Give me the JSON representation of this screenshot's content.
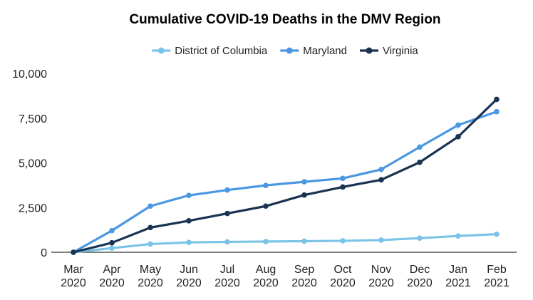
{
  "chart_data": {
    "type": "line",
    "title": "Cumulative COVID-19 Deaths in the DMV Region",
    "xlabel": "",
    "ylabel": "",
    "categories": [
      [
        "Mar",
        "2020"
      ],
      [
        "Apr",
        "2020"
      ],
      [
        "May",
        "2020"
      ],
      [
        "Jun",
        "2020"
      ],
      [
        "Jul",
        "2020"
      ],
      [
        "Aug",
        "2020"
      ],
      [
        "Sep",
        "2020"
      ],
      [
        "Oct",
        "2020"
      ],
      [
        "Nov",
        "2020"
      ],
      [
        "Dec",
        "2020"
      ],
      [
        "Jan",
        "2021"
      ],
      [
        "Feb",
        "2021"
      ]
    ],
    "ylim": [
      0,
      10000
    ],
    "yticks": [
      0,
      2500,
      5000,
      7500,
      10000
    ],
    "ytick_labels": [
      "0",
      "2,500",
      "5,000",
      "7,500",
      "10,000"
    ],
    "grid": false,
    "legend_position": "top",
    "series": [
      {
        "name": "District of Columbia",
        "color": "#7bc4e8",
        "values": [
          0,
          230,
          460,
          550,
          580,
          600,
          620,
          640,
          680,
          790,
          910,
          1010
        ]
      },
      {
        "name": "Maryland",
        "color": "#4a97e2",
        "values": [
          0,
          1210,
          2580,
          3180,
          3480,
          3740,
          3940,
          4130,
          4630,
          5880,
          7110,
          7860
        ]
      },
      {
        "name": "Virginia",
        "color": "#1a3352",
        "values": [
          0,
          530,
          1380,
          1760,
          2170,
          2580,
          3200,
          3650,
          4050,
          5030,
          6460,
          8550
        ]
      }
    ]
  }
}
